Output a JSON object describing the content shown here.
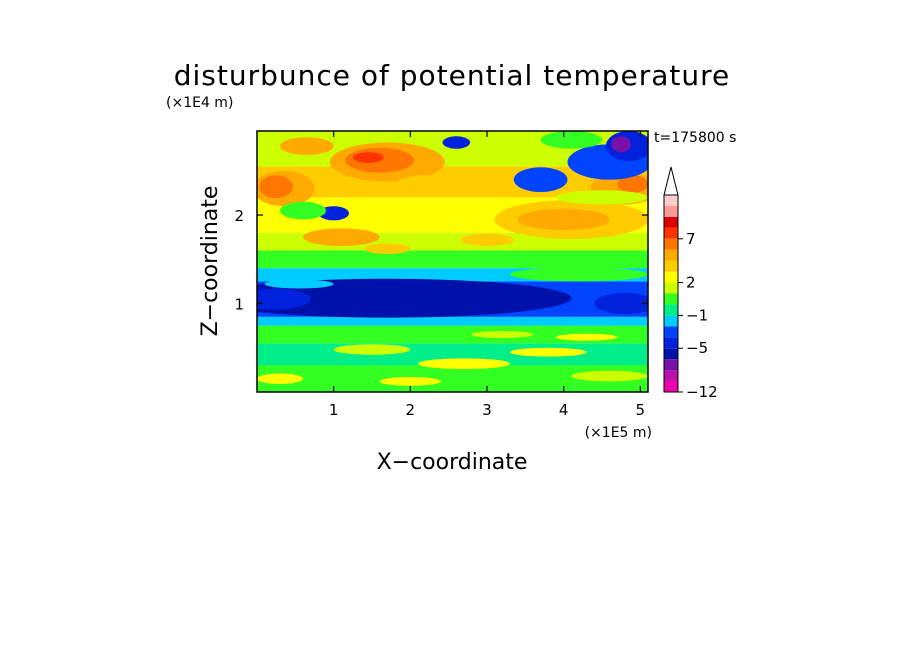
{
  "chart_data": {
    "type": "heatmap",
    "title": "disturbunce of potential temperature",
    "xlabel": "X−coordinate",
    "ylabel": "Z−coordinate",
    "x_unit": "(×1E5 m)",
    "y_unit": "(×1E4 m)",
    "time_label": "t=175800 s",
    "xlim": [
      0,
      5.1
    ],
    "ylim": [
      0,
      2.95
    ],
    "x_ticks": [
      {
        "value": 1,
        "label": "1"
      },
      {
        "value": 2,
        "label": "2"
      },
      {
        "value": 3,
        "label": "3"
      },
      {
        "value": 4,
        "label": "4"
      },
      {
        "value": 5,
        "label": "5"
      }
    ],
    "y_ticks": [
      {
        "value": 1,
        "label": "1"
      },
      {
        "value": 2,
        "label": "2"
      }
    ],
    "colorbar": {
      "colors": [
        "#ee00aa",
        "#bb11aa",
        "#7711aa",
        "#0011aa",
        "#0022dd",
        "#0044ff",
        "#00ccff",
        "#00ee88",
        "#33ff22",
        "#ccff00",
        "#ffff00",
        "#ffcc00",
        "#ffaa00",
        "#ff7700",
        "#ff3300",
        "#dd0000",
        "#ff9999",
        "#ffcccc"
      ],
      "tick_labels": [
        {
          "label": "−12",
          "box": 0
        },
        {
          "label": "−5",
          "box": 4
        },
        {
          "label": "−1",
          "box": 7
        },
        {
          "label": "2",
          "box": 10
        },
        {
          "label": "7",
          "box": 14
        }
      ],
      "extend": "max"
    },
    "bands": [
      {
        "z": [
          0.0,
          0.3
        ],
        "color": "#33ff22"
      },
      {
        "z": [
          0.3,
          0.55
        ],
        "color": "#00ee88"
      },
      {
        "z": [
          0.55,
          0.75
        ],
        "color": "#33ff22"
      },
      {
        "z": [
          0.75,
          0.85
        ],
        "color": "#00ccff"
      },
      {
        "z": [
          0.85,
          1.25
        ],
        "color": "#0044ff"
      },
      {
        "z": [
          1.25,
          1.4
        ],
        "color": "#00ccff"
      },
      {
        "z": [
          1.4,
          1.6
        ],
        "color": "#33ff22"
      },
      {
        "z": [
          1.6,
          1.8
        ],
        "color": "#ccff00"
      },
      {
        "z": [
          1.8,
          2.2
        ],
        "color": "#ffff00"
      },
      {
        "z": [
          2.2,
          2.55
        ],
        "color": "#ffcc00"
      },
      {
        "z": [
          2.55,
          2.95
        ],
        "color": "#ccff00"
      }
    ],
    "blobs": [
      {
        "x": 1.7,
        "z": 1.06,
        "rx": 2.4,
        "rz": 0.22,
        "color": "#0011aa"
      },
      {
        "x": 0.2,
        "z": 1.05,
        "rx": 0.5,
        "rz": 0.12,
        "color": "#0022dd"
      },
      {
        "x": 4.8,
        "z": 1.0,
        "rx": 0.4,
        "rz": 0.12,
        "color": "#0022dd"
      },
      {
        "x": 0.55,
        "z": 1.22,
        "rx": 0.45,
        "rz": 0.05,
        "color": "#00ccff"
      },
      {
        "x": 4.2,
        "z": 1.33,
        "rx": 0.9,
        "rz": 0.08,
        "color": "#33ff22"
      },
      {
        "x": 2.7,
        "z": 0.32,
        "rx": 0.6,
        "rz": 0.06,
        "color": "#ffff00"
      },
      {
        "x": 3.8,
        "z": 0.45,
        "rx": 0.5,
        "rz": 0.05,
        "color": "#ffff00"
      },
      {
        "x": 1.5,
        "z": 0.48,
        "rx": 0.5,
        "rz": 0.06,
        "color": "#ccff00"
      },
      {
        "x": 4.6,
        "z": 0.18,
        "rx": 0.5,
        "rz": 0.06,
        "color": "#ccff00"
      },
      {
        "x": 0.3,
        "z": 0.15,
        "rx": 0.3,
        "rz": 0.06,
        "color": "#ffff00"
      },
      {
        "x": 2.0,
        "z": 0.12,
        "rx": 0.4,
        "rz": 0.05,
        "color": "#ffff00"
      },
      {
        "x": 3.2,
        "z": 0.65,
        "rx": 0.4,
        "rz": 0.04,
        "color": "#ccff00"
      },
      {
        "x": 4.3,
        "z": 0.62,
        "rx": 0.4,
        "rz": 0.04,
        "color": "#ffff00"
      },
      {
        "x": 0.35,
        "z": 2.3,
        "rx": 0.4,
        "rz": 0.2,
        "color": "#ffaa00"
      },
      {
        "x": 0.25,
        "z": 2.32,
        "rx": 0.22,
        "rz": 0.13,
        "color": "#ff7700"
      },
      {
        "x": 1.7,
        "z": 2.6,
        "rx": 0.75,
        "rz": 0.22,
        "color": "#ffaa00"
      },
      {
        "x": 1.6,
        "z": 2.62,
        "rx": 0.45,
        "rz": 0.14,
        "color": "#ff7700"
      },
      {
        "x": 1.45,
        "z": 2.65,
        "rx": 0.2,
        "rz": 0.06,
        "color": "#ff3300"
      },
      {
        "x": 1.1,
        "z": 1.75,
        "rx": 0.5,
        "rz": 0.1,
        "color": "#ffaa00"
      },
      {
        "x": 4.1,
        "z": 1.95,
        "rx": 1.0,
        "rz": 0.22,
        "color": "#ffcc00"
      },
      {
        "x": 4.0,
        "z": 1.95,
        "rx": 0.6,
        "rz": 0.12,
        "color": "#ffaa00"
      },
      {
        "x": 4.8,
        "z": 2.3,
        "rx": 0.45,
        "rz": 0.18,
        "color": "#ffaa00"
      },
      {
        "x": 4.9,
        "z": 2.35,
        "rx": 0.2,
        "rz": 0.1,
        "color": "#ff7700"
      },
      {
        "x": 0.65,
        "z": 2.78,
        "rx": 0.35,
        "rz": 0.1,
        "color": "#ffaa00"
      },
      {
        "x": 3.7,
        "z": 2.4,
        "rx": 0.35,
        "rz": 0.14,
        "color": "#0044ff"
      },
      {
        "x": 4.6,
        "z": 2.6,
        "rx": 0.55,
        "rz": 0.2,
        "color": "#0044ff"
      },
      {
        "x": 4.85,
        "z": 2.78,
        "rx": 0.3,
        "rz": 0.17,
        "color": "#0022dd"
      },
      {
        "x": 4.75,
        "z": 2.8,
        "rx": 0.13,
        "rz": 0.09,
        "color": "#7711aa"
      },
      {
        "x": 1.0,
        "z": 2.02,
        "rx": 0.2,
        "rz": 0.08,
        "color": "#0022dd"
      },
      {
        "x": 2.6,
        "z": 2.82,
        "rx": 0.18,
        "rz": 0.07,
        "color": "#0022dd"
      },
      {
        "x": 0.6,
        "z": 2.05,
        "rx": 0.3,
        "rz": 0.1,
        "color": "#33ff22"
      },
      {
        "x": 4.5,
        "z": 2.2,
        "rx": 0.6,
        "rz": 0.08,
        "color": "#ccff00"
      },
      {
        "x": 3.0,
        "z": 1.72,
        "rx": 0.35,
        "rz": 0.07,
        "color": "#ffcc00"
      },
      {
        "x": 1.7,
        "z": 1.62,
        "rx": 0.3,
        "rz": 0.06,
        "color": "#ffcc00"
      },
      {
        "x": 4.1,
        "z": 2.85,
        "rx": 0.4,
        "rz": 0.1,
        "color": "#33ff22"
      },
      {
        "x": 2.2,
        "z": 2.35,
        "rx": 0.4,
        "rz": 0.1,
        "color": "#ffcc00"
      }
    ]
  }
}
